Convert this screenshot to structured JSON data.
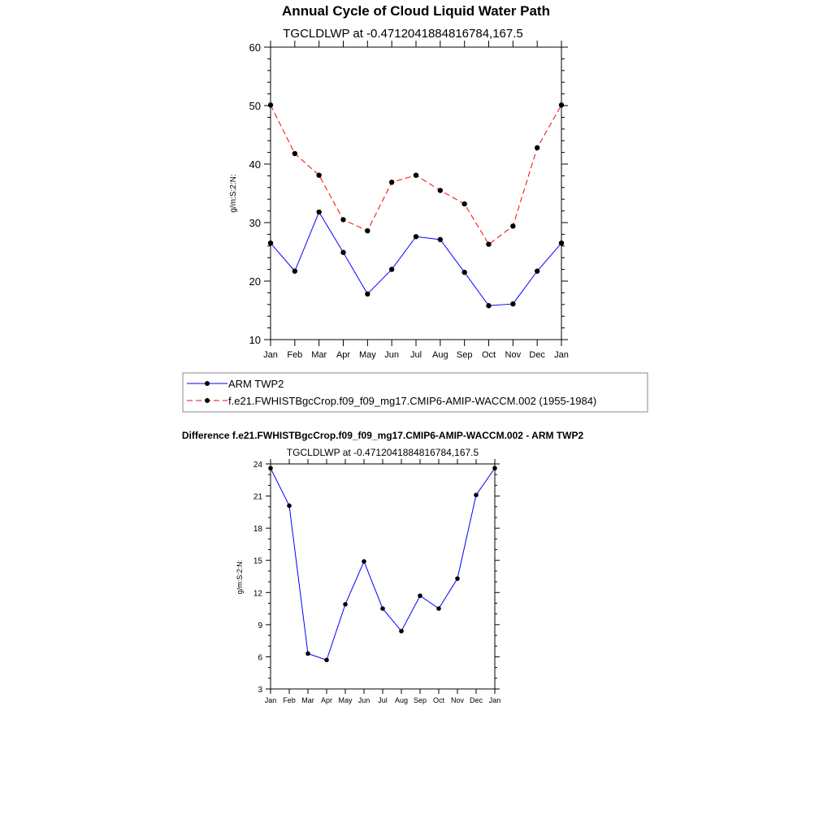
{
  "chart_data": [
    {
      "type": "line",
      "title": "Annual Cycle of Cloud Liquid Water Path",
      "subtitle": "TGCLDLWP at -0.4712041884816784,167.5",
      "ylabel": "g/m:S:2:N:",
      "xlabel": "",
      "ylim": [
        10,
        60
      ],
      "yticks": [
        "10",
        "20",
        "30",
        "40",
        "50",
        "60"
      ],
      "categories": [
        "Jan",
        "Feb",
        "Mar",
        "Apr",
        "May",
        "Jun",
        "Jul",
        "Aug",
        "Sep",
        "Oct",
        "Nov",
        "Dec",
        "Jan"
      ],
      "series": [
        {
          "name": "ARM TWP2",
          "color": "#0000ff",
          "dash": "solid",
          "values": [
            26.5,
            21.7,
            31.8,
            24.9,
            17.8,
            22.0,
            27.6,
            27.1,
            21.5,
            15.8,
            16.1,
            21.7,
            26.5
          ]
        },
        {
          "name": "f.e21.FWHISTBgcCrop.f09_f09_mg17.CMIP6-AMIP-WACCM.002 (1955-1984)",
          "color": "#ff0000",
          "dash": "dashed",
          "values": [
            50.1,
            41.8,
            38.1,
            30.5,
            28.6,
            36.9,
            38.1,
            35.5,
            33.2,
            26.3,
            29.4,
            42.8,
            50.1
          ]
        }
      ],
      "legend": "bottom"
    },
    {
      "type": "line",
      "title": "Difference f.e21.FWHISTBgcCrop.f09_f09_mg17.CMIP6-AMIP-WACCM.002 - ARM TWP2",
      "subtitle": "TGCLDLWP at -0.4712041884816784,167.5",
      "ylabel": "g/m:S:2:N:",
      "xlabel": "",
      "ylim": [
        3,
        24
      ],
      "yticks": [
        "3",
        "6",
        "9",
        "12",
        "15",
        "18",
        "21",
        "24"
      ],
      "categories": [
        "Jan",
        "Feb",
        "Mar",
        "Apr",
        "May",
        "Jun",
        "Jul",
        "Aug",
        "Sep",
        "Oct",
        "Nov",
        "Dec",
        "Jan"
      ],
      "series": [
        {
          "color": "#0000ff",
          "dash": "solid",
          "values": [
            23.6,
            20.1,
            6.3,
            5.7,
            10.9,
            14.9,
            10.5,
            8.4,
            11.7,
            10.5,
            13.3,
            21.1,
            23.6
          ]
        }
      ]
    }
  ]
}
